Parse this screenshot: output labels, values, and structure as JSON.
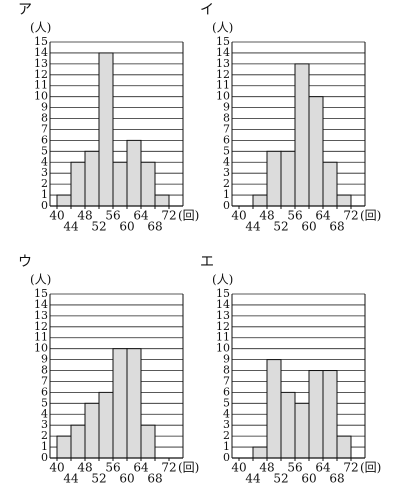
{
  "chart_data": [
    {
      "type": "histogram",
      "title": "ア",
      "ylabel": "(人)",
      "xlabel": "(回)",
      "bins": [
        40,
        44,
        48,
        52,
        56,
        60,
        64,
        68,
        72
      ],
      "counts": [
        1,
        4,
        5,
        14,
        4,
        6,
        4,
        1
      ],
      "color": "#dcdcdc",
      "xlim": [
        38,
        76
      ],
      "ylim": [
        0,
        15
      ],
      "yticks": [
        0,
        1,
        2,
        3,
        4,
        5,
        6,
        7,
        8,
        9,
        10,
        11,
        12,
        13,
        14,
        15
      ],
      "grid": true
    },
    {
      "type": "histogram",
      "title": "イ",
      "ylabel": "(人)",
      "xlabel": "(回)",
      "bins": [
        40,
        44,
        48,
        52,
        56,
        60,
        64,
        68,
        72
      ],
      "counts": [
        0,
        1,
        5,
        5,
        13,
        10,
        4,
        1
      ],
      "color": "#dcdcdc",
      "xlim": [
        38,
        76
      ],
      "ylim": [
        0,
        15
      ],
      "yticks": [
        0,
        1,
        2,
        3,
        4,
        5,
        6,
        7,
        8,
        9,
        10,
        11,
        12,
        13,
        14,
        15
      ],
      "grid": true
    },
    {
      "type": "histogram",
      "title": "ウ",
      "ylabel": "(人)",
      "xlabel": "(回)",
      "bins": [
        40,
        44,
        48,
        52,
        56,
        60,
        64,
        68,
        72
      ],
      "counts": [
        2,
        3,
        5,
        6,
        10,
        10,
        3,
        0
      ],
      "color": "#dcdcdc",
      "xlim": [
        38,
        76
      ],
      "ylim": [
        0,
        15
      ],
      "yticks": [
        0,
        1,
        2,
        3,
        4,
        5,
        6,
        7,
        8,
        9,
        10,
        11,
        12,
        13,
        14,
        15
      ],
      "grid": true
    },
    {
      "type": "histogram",
      "title": "エ",
      "ylabel": "(人)",
      "xlabel": "(回)",
      "bins": [
        40,
        44,
        48,
        52,
        56,
        60,
        64,
        68,
        72
      ],
      "counts": [
        0,
        1,
        9,
        6,
        5,
        8,
        8,
        2
      ],
      "color": "#dcdcdc",
      "xlim": [
        38,
        76
      ],
      "ylim": [
        0,
        15
      ],
      "yticks": [
        0,
        1,
        2,
        3,
        4,
        5,
        6,
        7,
        8,
        9,
        10,
        11,
        12,
        13,
        14,
        15
      ],
      "grid": true
    }
  ]
}
